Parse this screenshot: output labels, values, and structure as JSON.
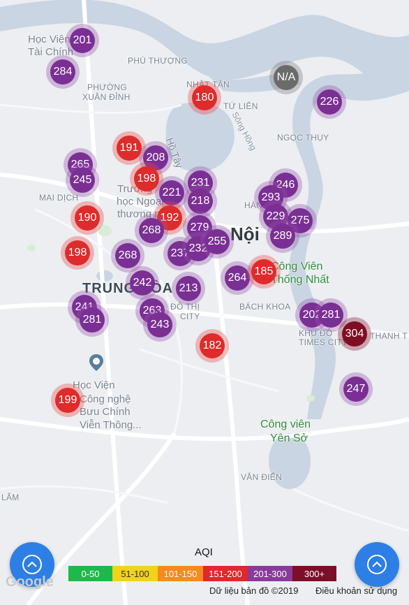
{
  "places": [
    {
      "name": "Học Viện",
      "cls": "med"
    },
    {
      "name": "Tài Chính",
      "cls": "med"
    },
    {
      "name": "PHÚ THƯỢNG",
      "cls": "small"
    },
    {
      "name": "PHƯỜNG",
      "cls": "small"
    },
    {
      "name": "XUÂN ĐỈNH",
      "cls": "small"
    },
    {
      "name": "NHẬT TÂN",
      "cls": "small"
    },
    {
      "name": "TỨ LIÊN",
      "cls": "small"
    },
    {
      "name": "Sông Hồng",
      "cls": "river"
    },
    {
      "name": "NGỌC THỤY",
      "cls": "small"
    },
    {
      "name": "Hồ Tây",
      "cls": "river2"
    },
    {
      "name": "Trường",
      "cls": "med"
    },
    {
      "name": "học Ngoại",
      "cls": "med"
    },
    {
      "name": "thương mại",
      "cls": "med"
    },
    {
      "name": "MAI DỊCH",
      "cls": "small"
    },
    {
      "name": "HÀNG",
      "cls": "small"
    },
    {
      "name": "Nội",
      "cls": "city"
    },
    {
      "name": "Công Viên",
      "cls": "park"
    },
    {
      "name": "Thống Nhất",
      "cls": "park"
    },
    {
      "name": "TRUNG HÒA",
      "cls": "big"
    },
    {
      "name": "ĐÔ THỊ",
      "cls": "small"
    },
    {
      "name": "CITY",
      "cls": "small"
    },
    {
      "name": "BÁCH KHOA",
      "cls": "small"
    },
    {
      "name": "KHU ĐÔ",
      "cls": "small"
    },
    {
      "name": "TIMES CITY",
      "cls": "small"
    },
    {
      "name": "THANH T",
      "cls": "small"
    },
    {
      "name": "Học Viện",
      "cls": "med"
    },
    {
      "name": "Công nghệ",
      "cls": "med"
    },
    {
      "name": "Bưu Chính",
      "cls": "med"
    },
    {
      "name": "Viễn Thông...",
      "cls": "med"
    },
    {
      "name": "Công viên",
      "cls": "park"
    },
    {
      "name": "Yên Sở",
      "cls": "park"
    },
    {
      "name": "VĂN ĐIỂN",
      "cls": "small"
    },
    {
      "name": "LÃM",
      "cls": "small"
    }
  ],
  "stations": [
    {
      "aqi": "201",
      "level": "purple"
    },
    {
      "aqi": "284",
      "level": "purple"
    },
    {
      "aqi": "N/A",
      "level": "na"
    },
    {
      "aqi": "180",
      "level": "red"
    },
    {
      "aqi": "226",
      "level": "purple"
    },
    {
      "aqi": "191",
      "level": "red"
    },
    {
      "aqi": "208",
      "level": "purple"
    },
    {
      "aqi": "265",
      "level": "purple"
    },
    {
      "aqi": "245",
      "level": "purple"
    },
    {
      "aqi": "198",
      "level": "red"
    },
    {
      "aqi": "231",
      "level": "purple"
    },
    {
      "aqi": "221",
      "level": "purple"
    },
    {
      "aqi": "218",
      "level": "purple"
    },
    {
      "aqi": "246",
      "level": "purple"
    },
    {
      "aqi": "293",
      "level": "purple"
    },
    {
      "aqi": "229",
      "level": "purple"
    },
    {
      "aqi": "275",
      "level": "purple"
    },
    {
      "aqi": "190",
      "level": "red"
    },
    {
      "aqi": "192",
      "level": "red"
    },
    {
      "aqi": "268",
      "level": "purple"
    },
    {
      "aqi": "279",
      "level": "purple"
    },
    {
      "aqi": "289",
      "level": "purple"
    },
    {
      "aqi": "198",
      "level": "red"
    },
    {
      "aqi": "268",
      "level": "purple"
    },
    {
      "aqi": "237",
      "level": "purple"
    },
    {
      "aqi": "232",
      "level": "purple"
    },
    {
      "aqi": "255",
      "level": "purple"
    },
    {
      "aqi": "264",
      "level": "purple"
    },
    {
      "aqi": "185",
      "level": "red"
    },
    {
      "aqi": "242",
      "level": "purple"
    },
    {
      "aqi": "213",
      "level": "purple"
    },
    {
      "aqi": "241",
      "level": "purple"
    },
    {
      "aqi": "281",
      "level": "purple"
    },
    {
      "aqi": "263",
      "level": "purple"
    },
    {
      "aqi": "243",
      "level": "purple"
    },
    {
      "aqi": "202",
      "level": "purple"
    },
    {
      "aqi": "281",
      "level": "purple"
    },
    {
      "aqi": "304",
      "level": "maroon"
    },
    {
      "aqi": "182",
      "level": "red"
    },
    {
      "aqi": "247",
      "level": "purple"
    },
    {
      "aqi": "199",
      "level": "red"
    }
  ],
  "legend": {
    "title": "AQI",
    "ranges": [
      {
        "label": "0-50",
        "color": "#1fb84a"
      },
      {
        "label": "51-100",
        "color": "#f2d21b",
        "text_color": "#333333"
      },
      {
        "label": "101-150",
        "color": "#f58a1f"
      },
      {
        "label": "151-200",
        "color": "#e0282d"
      },
      {
        "label": "201-300",
        "color": "#8a3a9a"
      },
      {
        "label": "300+",
        "color": "#7b0f2a"
      }
    ]
  },
  "footer": {
    "map_data": "Dữ liệu bản đồ ©2019",
    "terms": "Điều khoản sử dụng",
    "google": "Google"
  },
  "buttons": {
    "locate_icon": "chevron-up-icon"
  }
}
